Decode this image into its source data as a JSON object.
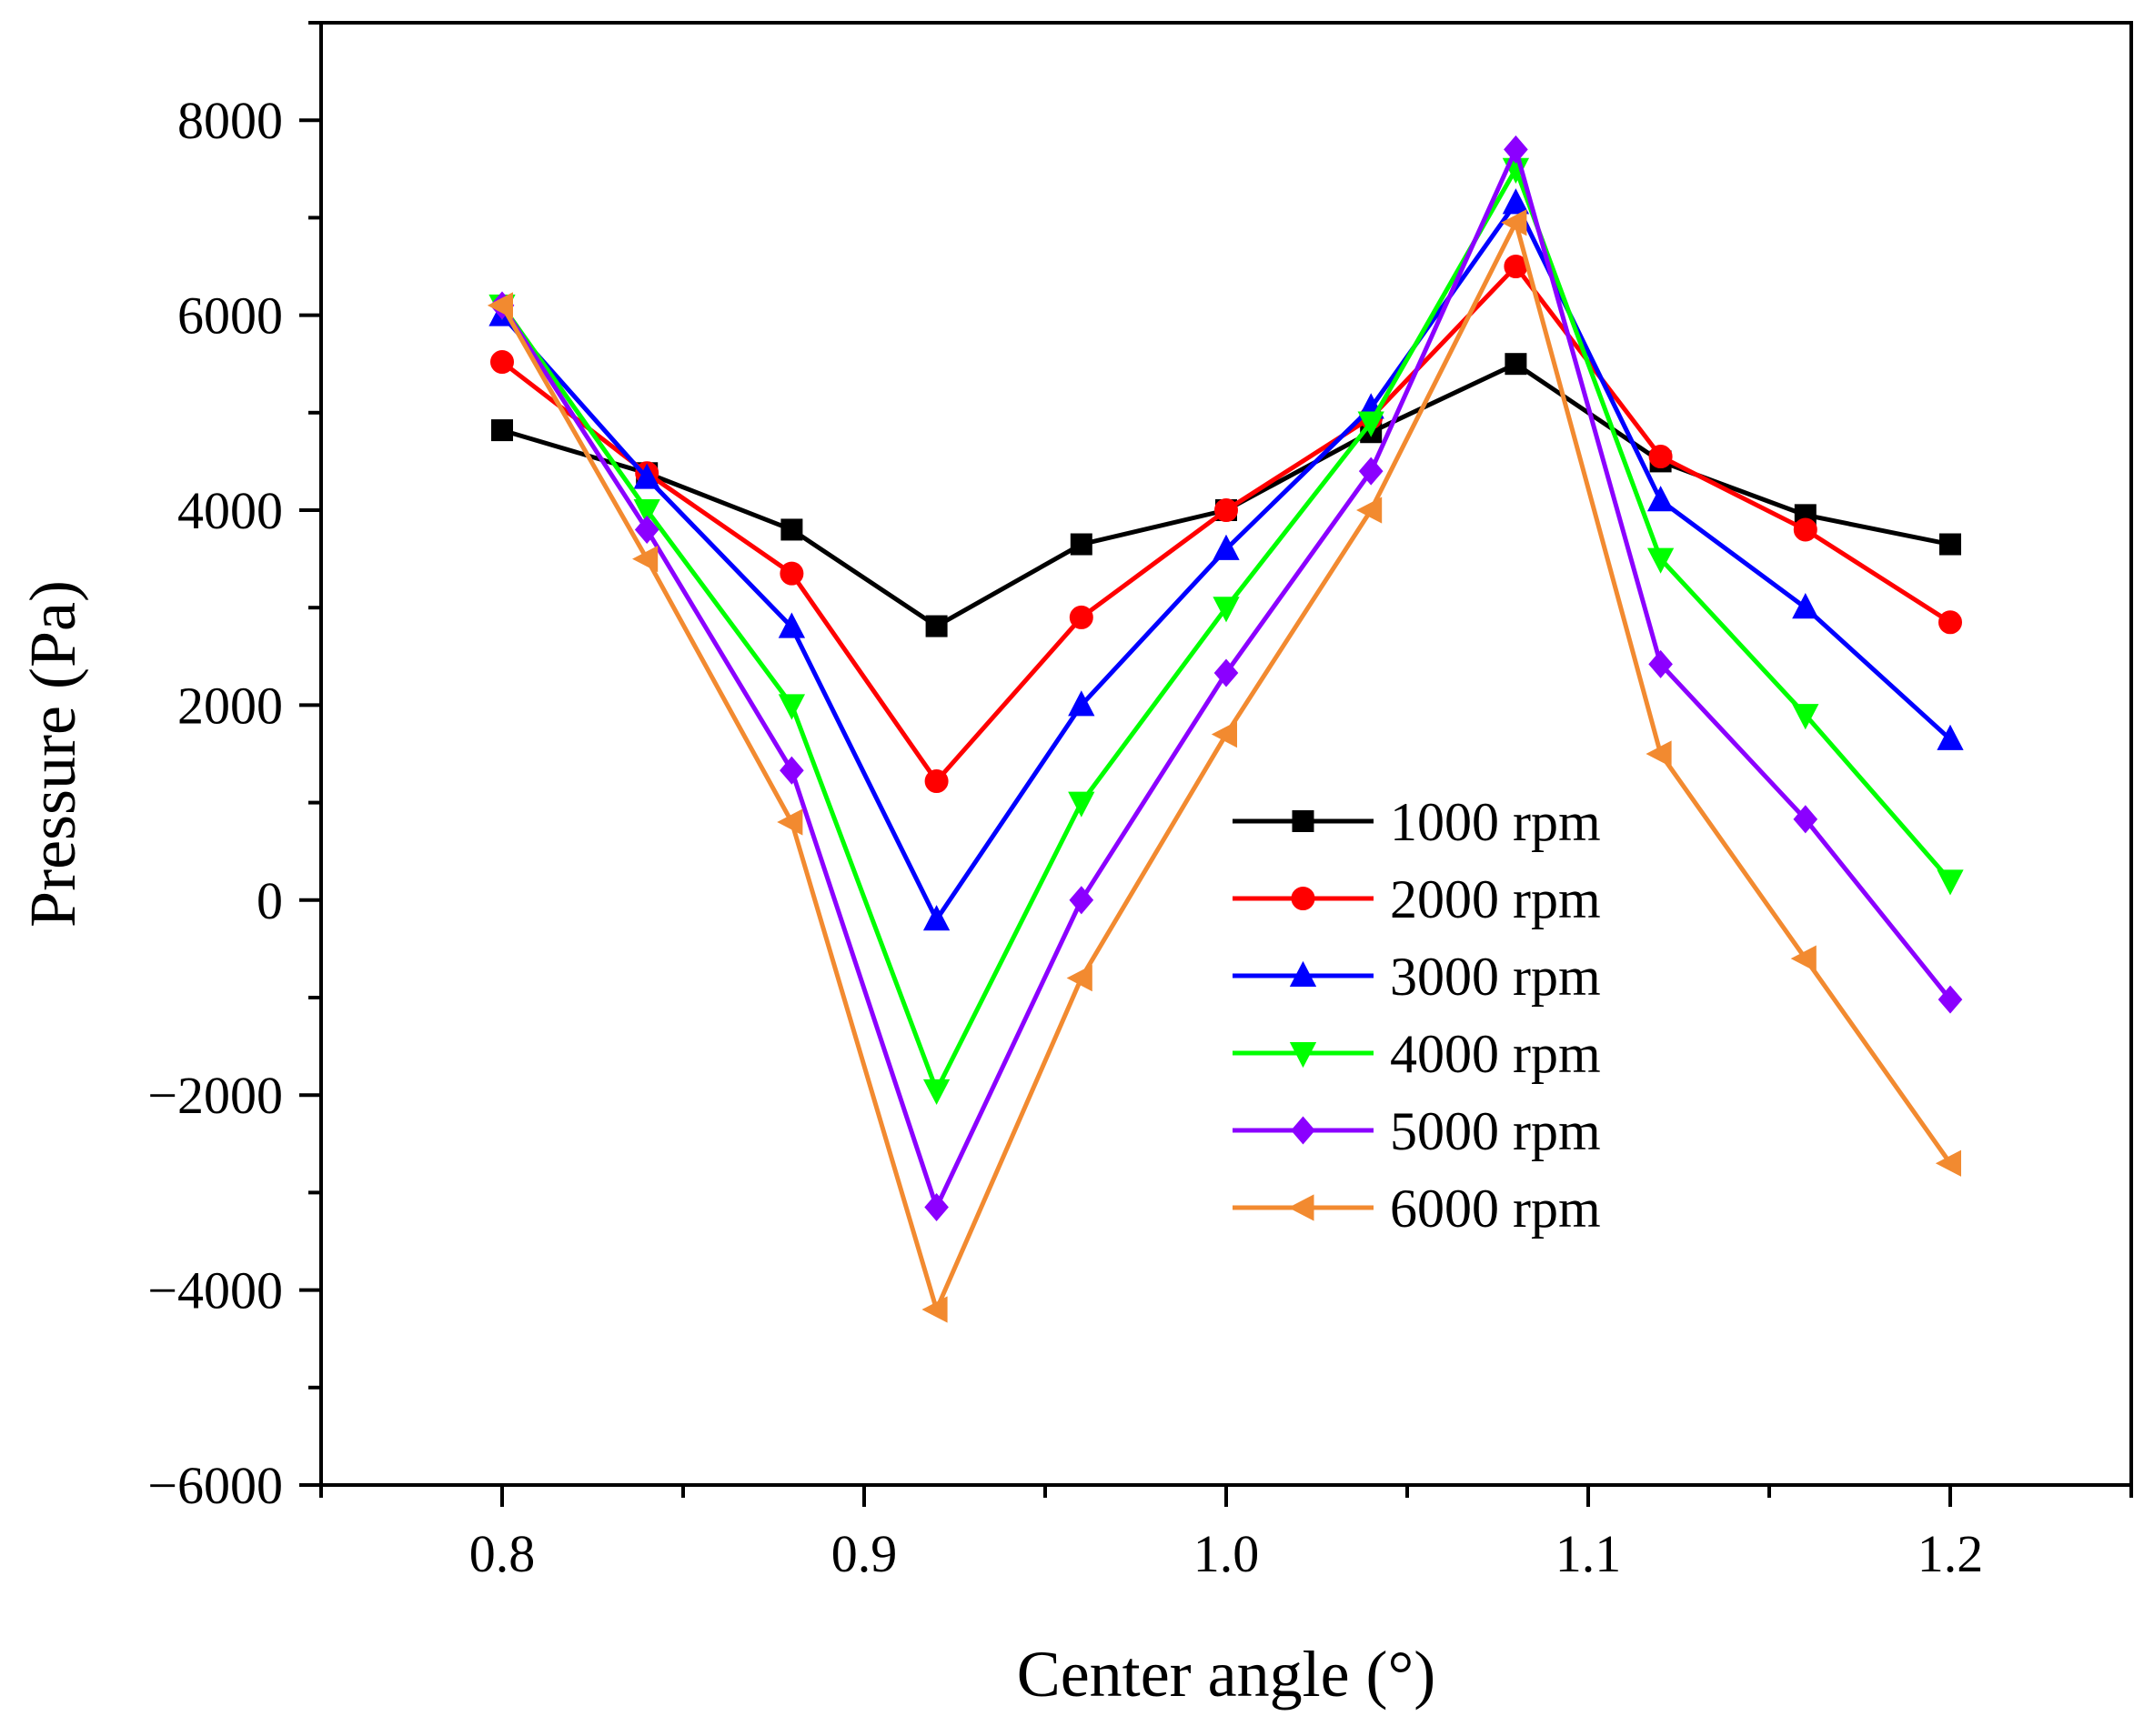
{
  "chart_data": {
    "type": "line",
    "title": "",
    "xlabel": "Center angle (°)",
    "ylabel": "Pressure (Pa)",
    "xlim": [
      0.75,
      1.25
    ],
    "ylim": [
      -6000,
      9000
    ],
    "xticks": [
      0.8,
      0.9,
      1.0,
      1.1,
      1.2
    ],
    "xtick_labels": [
      "0.8",
      "0.9",
      "1.0",
      "1.1",
      "1.2"
    ],
    "yticks": [
      -6000,
      -4000,
      -2000,
      0,
      2000,
      4000,
      6000,
      8000
    ],
    "ytick_labels": [
      "−6000",
      "−4000",
      "−2000",
      "0",
      "2000",
      "4000",
      "6000",
      "8000"
    ],
    "grid": false,
    "legend_position": "center-right",
    "x": [
      0.8,
      0.84,
      0.88,
      0.92,
      0.96,
      1.0,
      1.04,
      1.08,
      1.12,
      1.16,
      1.2
    ],
    "series": [
      {
        "name": "1000 rpm",
        "color": "#000000",
        "marker": "square",
        "values": [
          4820,
          4380,
          3800,
          2810,
          3650,
          4000,
          4800,
          5500,
          4500,
          3950,
          3650
        ]
      },
      {
        "name": "2000 rpm",
        "color": "#ff0000",
        "marker": "circle",
        "values": [
          5520,
          4380,
          3350,
          1220,
          2900,
          4000,
          4950,
          6500,
          4550,
          3800,
          2850
        ]
      },
      {
        "name": "3000 rpm",
        "color": "#0000ff",
        "marker": "triangle-up",
        "values": [
          6000,
          4330,
          2800,
          -200,
          2000,
          3600,
          5050,
          7150,
          4100,
          3000,
          1650
        ]
      },
      {
        "name": "4000 rpm",
        "color": "#00ff00",
        "marker": "triangle-down",
        "values": [
          6100,
          4000,
          2000,
          -1950,
          1000,
          3000,
          4900,
          7500,
          3500,
          1900,
          200
        ]
      },
      {
        "name": "5000 rpm",
        "color": "#8b00ff",
        "marker": "diamond",
        "values": [
          6100,
          3800,
          1330,
          -3150,
          0,
          2330,
          4400,
          7700,
          2420,
          830,
          -1020
        ]
      },
      {
        "name": "6000 rpm",
        "color": "#f28a30",
        "marker": "triangle-left",
        "values": [
          6100,
          3500,
          800,
          -4200,
          -800,
          1700,
          4000,
          6950,
          1500,
          -600,
          -2700
        ]
      }
    ]
  }
}
